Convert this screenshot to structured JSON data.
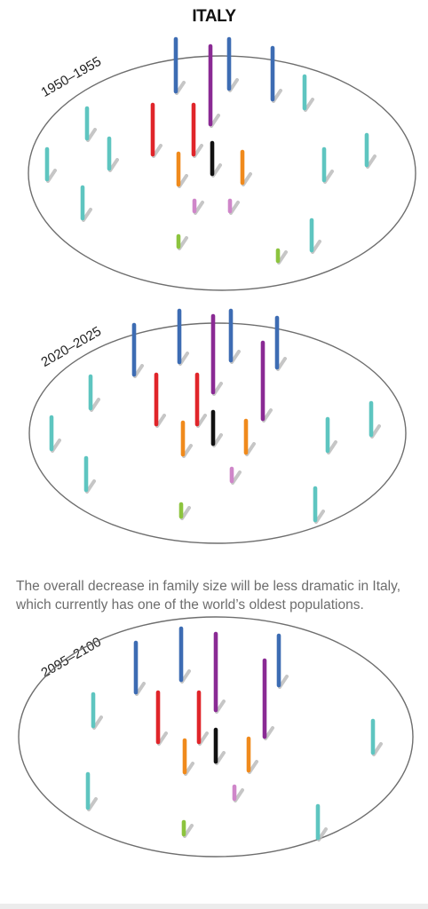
{
  "title": "ITALY",
  "caption_line1": "The overall decrease in family size will be less dramatic in Italy,",
  "caption_line2": "which currently has one of the world’s oldest populations.",
  "colors": {
    "blue": "#3d6cb3",
    "purple": "#8a2a94",
    "red": "#e0252a",
    "black": "#111111",
    "orange": "#f08a1c",
    "pink": "#cf86c9",
    "green": "#8cc43e",
    "teal": "#5ec5c0",
    "outline": "#6e6e6e"
  },
  "panels": [
    {
      "period": "1950–1955"
    },
    {
      "period": "2020–2025"
    },
    {
      "period": "2095–2100"
    }
  ]
}
